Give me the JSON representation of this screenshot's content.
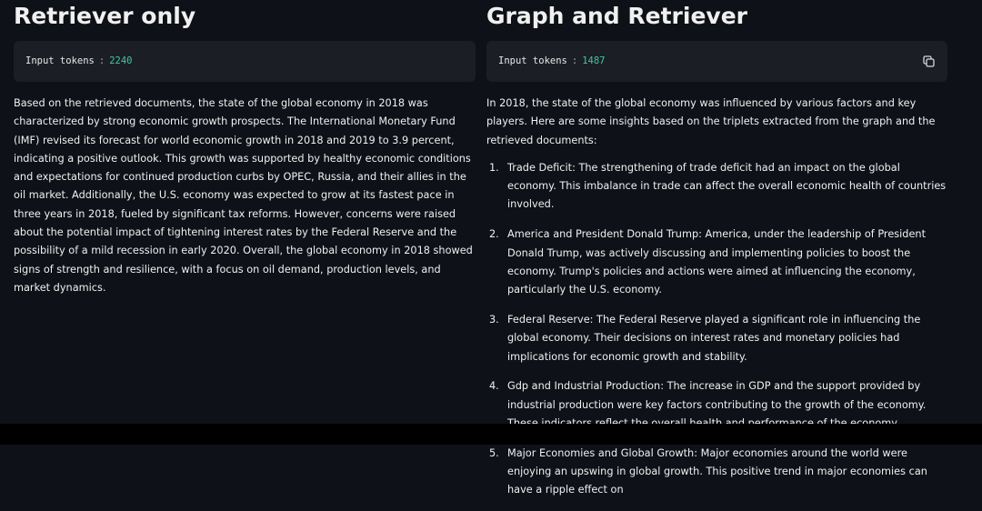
{
  "left": {
    "title": "Retriever only",
    "tokens": {
      "label": "Input tokens",
      "separator": ":",
      "value": 2240
    },
    "paragraphs": [
      "Based on the retrieved documents, the state of the global economy in 2018 was characterized by strong economic growth prospects. The International Monetary Fund (IMF) revised its forecast for world economic growth in 2018 and 2019 to 3.9 percent, indicating a positive outlook. This growth was supported by healthy economic conditions and expectations for continued production curbs by OPEC, Russia, and their allies in the oil market. Additionally, the U.S. economy was expected to grow at its fastest pace in three years in 2018, fueled by significant tax reforms. However, concerns were raised about the potential impact of tightening interest rates by the Federal Reserve and the possibility of a mild recession in early 2020. Overall, the global economy in 2018 showed signs of strength and resilience, with a focus on oil demand, production levels, and market dynamics."
    ]
  },
  "right": {
    "title": "Graph and Retriever",
    "tokens": {
      "label": "Input tokens",
      "separator": ":",
      "value": 1487
    },
    "intro": "In 2018, the state of the global economy was influenced by various factors and key players. Here are some insights based on the triplets extracted from the graph and the retrieved documents:",
    "items": [
      {
        "marker": "1.",
        "text": "Trade Deficit: The strengthening of trade deficit had an impact on the global economy. This imbalance in trade can affect the overall economic health of countries involved."
      },
      {
        "marker": "2.",
        "text": "America and President Donald Trump: America, under the leadership of President Donald Trump, was actively discussing and implementing policies to boost the economy. Trump's policies and actions were aimed at influencing the economy, particularly the U.S. economy."
      },
      {
        "marker": "3.",
        "text": "Federal Reserve: The Federal Reserve played a significant role in influencing the global economy. Their decisions on interest rates and monetary policies had implications for economic growth and stability."
      },
      {
        "marker": "4.",
        "text": "Gdp and Industrial Production: The increase in GDP and the support provided by industrial production were key factors contributing to the growth of the economy. These indicators reflect the overall health and performance of the economy."
      },
      {
        "marker": "5.",
        "text": "Major Economies and Global Growth: Major economies around the world were enjoying an upswing in global growth. This positive trend in major economies can have a ripple effect on"
      }
    ]
  }
}
